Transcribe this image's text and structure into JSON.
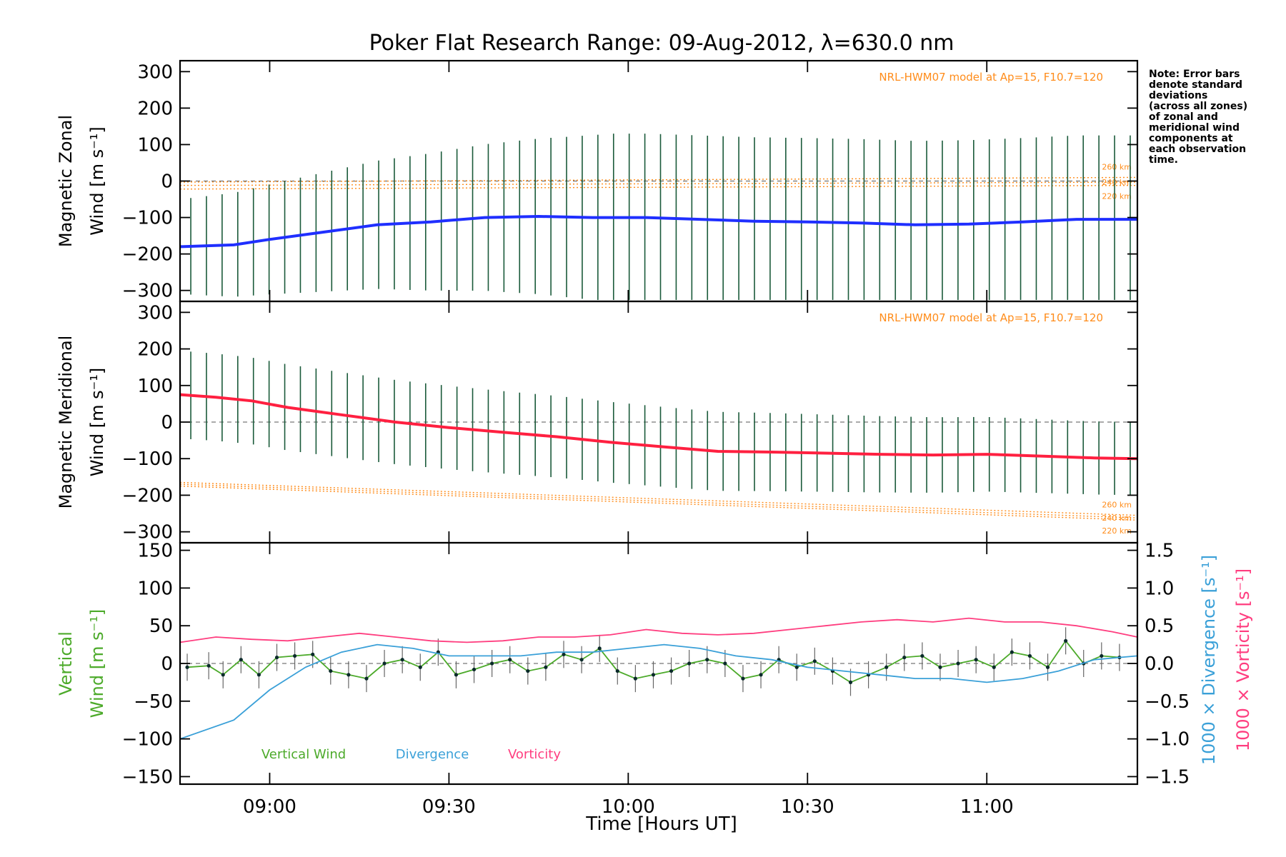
{
  "title": "Poker Flat Research Range: 09-Aug-2012, λ=630.0 nm",
  "xlabel": "Time [Hours UT]",
  "note": [
    "Note: Error bars",
    "denote standard",
    "deviations",
    "(across all zones)",
    "of zonal and",
    "meridional wind",
    "components at",
    "each observation",
    "time."
  ],
  "colors": {
    "zonal": "#1f2fff",
    "meridional": "#ff2040",
    "model": "#ff8c1a",
    "vertical": "#4caa2a",
    "divergence": "#3aa0d8",
    "vorticity": "#ff3d7f",
    "errorbar": "#1a5a3a"
  },
  "chart_data": [
    {
      "type": "line",
      "panel": "zonal",
      "ylabel_lines": [
        "Magnetic Zonal",
        "Wind [m s⁻¹]"
      ],
      "ylim": [
        -330,
        330
      ],
      "yticks": [
        300,
        200,
        100,
        0,
        -100,
        -200,
        -300
      ],
      "xlim_hours": [
        8.75,
        11.42
      ],
      "xticks": [
        "09:00",
        "09:30",
        "10:00",
        "10:30",
        "11:00"
      ],
      "model_label": "NRL-HWM07 model at Ap=15, F10.7=120",
      "model_altitudes": [
        "260 km",
        "240 km",
        "220 km"
      ],
      "series": [
        {
          "name": "Zonal wind",
          "x": [
            8.75,
            8.9,
            9.0,
            9.15,
            9.3,
            9.45,
            9.6,
            9.75,
            9.9,
            10.05,
            10.2,
            10.35,
            10.5,
            10.65,
            10.8,
            10.95,
            11.1,
            11.25,
            11.42
          ],
          "y": [
            -180,
            -175,
            -160,
            -140,
            -120,
            -112,
            -100,
            -97,
            -100,
            -100,
            -105,
            -110,
            -112,
            -115,
            -120,
            -118,
            -112,
            -105,
            -105
          ]
        }
      ],
      "model_lines": [
        {
          "alt": "260 km",
          "y0": -3,
          "y1": 10
        },
        {
          "alt": "240 km",
          "y0": -12,
          "y1": -3
        },
        {
          "alt": "220 km",
          "y0": -22,
          "y1": -12
        }
      ]
    },
    {
      "type": "line",
      "panel": "meridional",
      "ylabel_lines": [
        "Magnetic Meridional",
        "Wind [m s⁻¹]"
      ],
      "ylim": [
        -330,
        330
      ],
      "yticks": [
        300,
        200,
        100,
        0,
        -100,
        -200,
        -300
      ],
      "model_label": "NRL-HWM07 model at Ap=15, F10.7=120",
      "model_altitudes": [
        "260 km",
        "240 km",
        "220 km"
      ],
      "series": [
        {
          "name": "Meridional wind",
          "x": [
            8.75,
            8.85,
            8.95,
            9.05,
            9.2,
            9.35,
            9.5,
            9.65,
            9.8,
            9.95,
            10.1,
            10.25,
            10.4,
            10.55,
            10.7,
            10.85,
            11.0,
            11.15,
            11.3,
            11.42
          ],
          "y": [
            75,
            68,
            58,
            40,
            20,
            0,
            -15,
            -28,
            -40,
            -55,
            -68,
            -80,
            -82,
            -85,
            -88,
            -90,
            -88,
            -93,
            -98,
            -100
          ]
        }
      ],
      "model_lines": [
        {
          "alt": "260 km",
          "y0": -165,
          "y1": -255
        },
        {
          "alt": "240 km",
          "y0": -170,
          "y1": -262
        },
        {
          "alt": "220 km",
          "y0": -175,
          "y1": -268
        }
      ]
    },
    {
      "type": "line",
      "panel": "vertical",
      "ylabel_lines": [
        "Vertical",
        "Wind [m s⁻¹]"
      ],
      "ylim": [
        -160,
        160
      ],
      "yticks": [
        150,
        100,
        50,
        0,
        -50,
        -100,
        -150
      ],
      "y2label_a": "1000 × Divergence [s⁻¹]",
      "y2label_b": "1000 × Vorticity [s⁻¹]",
      "y2lim": [
        -1.6,
        1.6
      ],
      "y2ticks": [
        "1.5",
        "1.0",
        "0.5",
        "0.0",
        "−0.5",
        "−1.0",
        "−1.5"
      ],
      "y2tick_values": [
        1.5,
        1.0,
        0.5,
        0.0,
        -0.5,
        -1.0,
        -1.5
      ],
      "legend": [
        "Vertical Wind",
        "Divergence",
        "Vorticity"
      ],
      "series": [
        {
          "name": "Vertical Wind",
          "x": [
            8.77,
            8.83,
            8.87,
            8.92,
            8.97,
            9.02,
            9.07,
            9.12,
            9.17,
            9.22,
            9.27,
            9.32,
            9.37,
            9.42,
            9.47,
            9.52,
            9.57,
            9.62,
            9.67,
            9.72,
            9.77,
            9.82,
            9.87,
            9.92,
            9.97,
            10.02,
            10.07,
            10.12,
            10.17,
            10.22,
            10.27,
            10.32,
            10.37,
            10.42,
            10.47,
            10.52,
            10.57,
            10.62,
            10.67,
            10.72,
            10.77,
            10.82,
            10.87,
            10.92,
            10.97,
            11.02,
            11.07,
            11.12,
            11.17,
            11.22,
            11.27,
            11.32,
            11.37
          ],
          "y": [
            -5,
            -3,
            -15,
            5,
            -15,
            8,
            10,
            12,
            -10,
            -15,
            -20,
            0,
            5,
            -5,
            15,
            -15,
            -8,
            0,
            5,
            -10,
            -5,
            12,
            5,
            20,
            -10,
            -20,
            -15,
            -10,
            0,
            5,
            0,
            -20,
            -15,
            5,
            -5,
            3,
            -10,
            -25,
            -15,
            -5,
            8,
            10,
            -5,
            0,
            5,
            -5,
            15,
            10,
            -5,
            30,
            0,
            10,
            8
          ]
        },
        {
          "name": "Divergence",
          "x": [
            8.75,
            8.9,
            9.0,
            9.1,
            9.2,
            9.3,
            9.4,
            9.5,
            9.6,
            9.7,
            9.8,
            9.9,
            10.0,
            10.1,
            10.2,
            10.3,
            10.4,
            10.5,
            10.6,
            10.7,
            10.8,
            10.9,
            11.0,
            11.1,
            11.2,
            11.3,
            11.42
          ],
          "y": [
            -1.0,
            -0.75,
            -0.35,
            -0.05,
            0.15,
            0.25,
            0.2,
            0.1,
            0.1,
            0.1,
            0.15,
            0.15,
            0.2,
            0.25,
            0.2,
            0.1,
            0.05,
            -0.05,
            -0.1,
            -0.15,
            -0.2,
            -0.2,
            -0.25,
            -0.2,
            -0.1,
            0.05,
            0.1
          ]
        },
        {
          "name": "Vorticity",
          "x": [
            8.75,
            8.85,
            8.95,
            9.05,
            9.15,
            9.25,
            9.35,
            9.45,
            9.55,
            9.65,
            9.75,
            9.85,
            9.95,
            10.05,
            10.15,
            10.25,
            10.35,
            10.45,
            10.55,
            10.65,
            10.75,
            10.85,
            10.95,
            11.05,
            11.15,
            11.25,
            11.35,
            11.42
          ],
          "y": [
            0.28,
            0.35,
            0.32,
            0.3,
            0.35,
            0.4,
            0.35,
            0.3,
            0.28,
            0.3,
            0.35,
            0.35,
            0.38,
            0.45,
            0.4,
            0.38,
            0.4,
            0.45,
            0.5,
            0.55,
            0.58,
            0.55,
            0.6,
            0.55,
            0.55,
            0.5,
            0.42,
            0.35
          ]
        }
      ]
    }
  ]
}
